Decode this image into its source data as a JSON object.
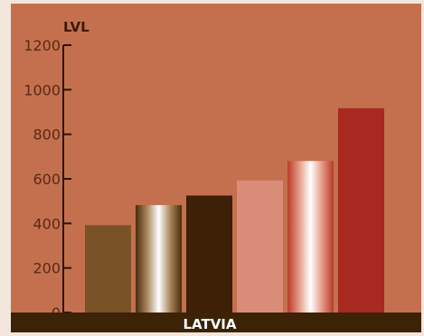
{
  "chart_data": {
    "type": "bar",
    "title": "",
    "ylabel": "LVL",
    "xlabel": "",
    "category_label": "LATVIA",
    "ylim": [
      0,
      1200
    ],
    "yticks": [
      0,
      200,
      400,
      600,
      800,
      1000,
      1200
    ],
    "values": [
      392,
      482,
      525,
      593,
      680,
      917
    ],
    "grid": false,
    "colors": {
      "panel": "#c4704f",
      "band": "#3c2206",
      "axis": "#2a1406",
      "tick_text": "#5a2a12"
    },
    "bar_styles": [
      {
        "kind": "solid",
        "color": "#7a5227"
      },
      {
        "kind": "gradient",
        "stops": [
          "#4a2c0c",
          "#a9865c",
          "#ffffff",
          "#a9865c",
          "#4a2c0c"
        ]
      },
      {
        "kind": "solid",
        "color": "#3d2005"
      },
      {
        "kind": "solid",
        "color": "#d98d78"
      },
      {
        "kind": "gradient",
        "stops": [
          "#b83a28",
          "#e49a86",
          "#ffffff",
          "#e49a86",
          "#b83a28"
        ]
      },
      {
        "kind": "solid",
        "color": "#a8291f"
      }
    ]
  }
}
